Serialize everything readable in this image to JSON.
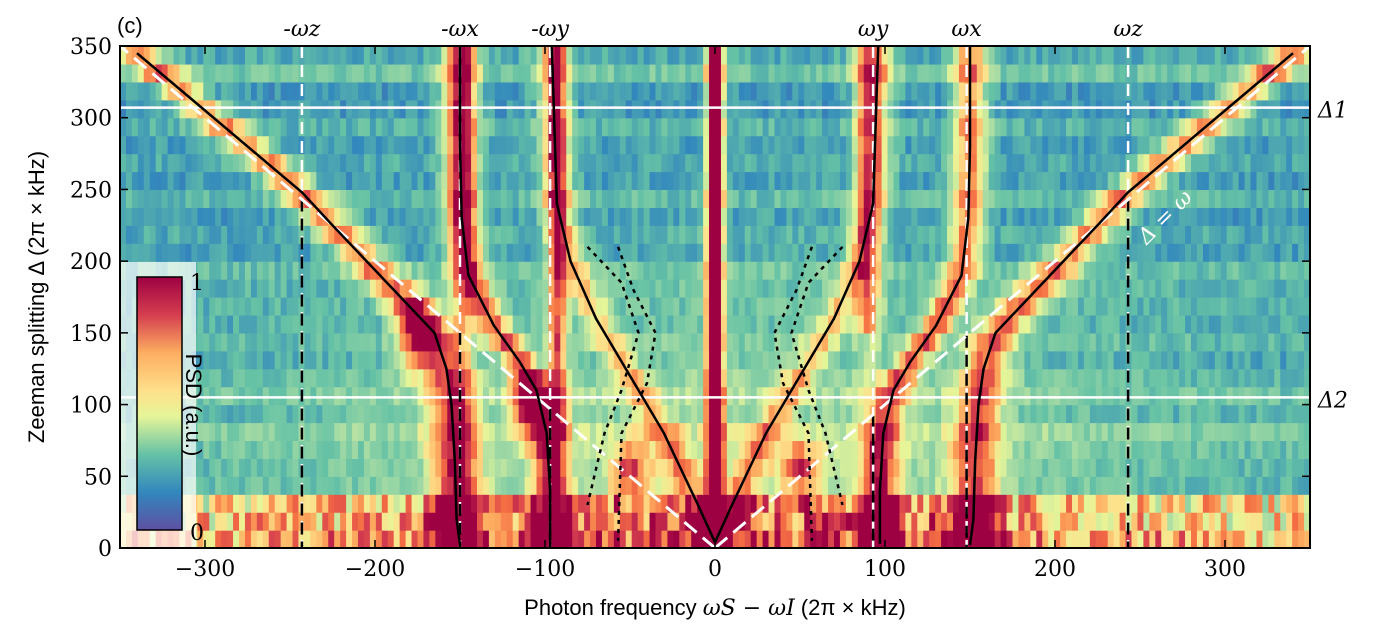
{
  "chart_data": {
    "type": "heatmap",
    "panel_label": "(c)",
    "xlabel_text": "Photon frequency ",
    "xlabel_math": "ωS − ωI",
    "xlabel_unit": "(2π × kHz)",
    "ylabel": "Zeeman splitting Δ (2π × kHz)",
    "xlim": [
      -350,
      350
    ],
    "ylim": [
      0,
      350
    ],
    "xticks": [
      -300,
      -200,
      -100,
      0,
      100,
      200,
      300
    ],
    "xtick_labels": [
      "−300",
      "−200",
      "−100",
      "0",
      "100",
      "200",
      "300"
    ],
    "yticks": [
      0,
      50,
      100,
      150,
      200,
      250,
      300,
      350
    ],
    "ytick_labels": [
      "0",
      "50",
      "100",
      "150",
      "200",
      "250",
      "300",
      "350"
    ],
    "colormap": "Spectral_r",
    "colorbar": {
      "label": "PSD (a.u.)",
      "min_label": "0",
      "max_label": "1",
      "placement": "lower-left"
    },
    "trap_frequencies": [
      {
        "label": "-ωz",
        "value": -243
      },
      {
        "label": "-ωx",
        "value": -150
      },
      {
        "label": "-ωy",
        "value": -97
      },
      {
        "label": "ωy",
        "value": 93
      },
      {
        "label": "ωx",
        "value": 148
      },
      {
        "label": "ωz",
        "value": 243
      }
    ],
    "horizontal_lines": [
      {
        "label": "Δ1",
        "value": 307
      },
      {
        "label": "Δ2",
        "value": 105
      }
    ],
    "diagonal_label": "Δ = ω",
    "diagonal_lines": [
      {
        "from": [
          0,
          0
        ],
        "to": [
          -350,
          350
        ]
      },
      {
        "from": [
          0,
          0
        ],
        "to": [
          350,
          350
        ]
      }
    ],
    "model_curves_solid": [
      {
        "points": [
          [
            -340,
            345
          ],
          [
            -300,
            305
          ],
          [
            -260,
            265
          ],
          [
            -243,
            248
          ],
          [
            -225,
            225
          ],
          [
            -205,
            200
          ],
          [
            -185,
            175
          ],
          [
            -165,
            150
          ],
          [
            -158,
            125
          ],
          [
            -155,
            100
          ],
          [
            -153,
            60
          ],
          [
            -152,
            20
          ],
          [
            -150,
            2
          ]
        ]
      },
      {
        "points": [
          [
            -150,
            350
          ],
          [
            -150,
            280
          ],
          [
            -149,
            230
          ],
          [
            -145,
            190
          ],
          [
            -130,
            155
          ],
          [
            -115,
            130
          ],
          [
            -105,
            110
          ],
          [
            -99,
            80
          ],
          [
            -97,
            40
          ],
          [
            -97,
            3
          ]
        ]
      },
      {
        "points": [
          [
            -96,
            350
          ],
          [
            -93,
            240
          ],
          [
            -85,
            200
          ],
          [
            -70,
            160
          ],
          [
            -50,
            120
          ],
          [
            -30,
            80
          ],
          [
            -10,
            30
          ],
          [
            0,
            4
          ]
        ]
      },
      {
        "points": [
          [
            0,
            4
          ],
          [
            10,
            30
          ],
          [
            30,
            80
          ],
          [
            50,
            120
          ],
          [
            70,
            160
          ],
          [
            85,
            200
          ],
          [
            93,
            240
          ],
          [
            96,
            350
          ]
        ]
      },
      {
        "points": [
          [
            97,
            3
          ],
          [
            97,
            40
          ],
          [
            99,
            80
          ],
          [
            105,
            110
          ],
          [
            115,
            130
          ],
          [
            130,
            155
          ],
          [
            145,
            190
          ],
          [
            149,
            230
          ],
          [
            150,
            280
          ],
          [
            150,
            350
          ]
        ]
      },
      {
        "points": [
          [
            150,
            2
          ],
          [
            152,
            20
          ],
          [
            153,
            60
          ],
          [
            155,
            100
          ],
          [
            158,
            125
          ],
          [
            165,
            150
          ],
          [
            185,
            175
          ],
          [
            205,
            200
          ],
          [
            225,
            225
          ],
          [
            243,
            248
          ],
          [
            260,
            265
          ],
          [
            300,
            305
          ],
          [
            340,
            345
          ]
        ]
      }
    ],
    "model_curves_dotted": [
      {
        "points": [
          [
            -75,
            210
          ],
          [
            -55,
            185
          ],
          [
            -45,
            150
          ],
          [
            -55,
            110
          ],
          [
            -65,
            80
          ],
          [
            -75,
            30
          ]
        ]
      },
      {
        "points": [
          [
            -57,
            210
          ],
          [
            -48,
            180
          ],
          [
            -35,
            150
          ],
          [
            -40,
            115
          ],
          [
            -55,
            80
          ],
          [
            -57,
            5
          ]
        ]
      },
      {
        "points": [
          [
            75,
            210
          ],
          [
            55,
            185
          ],
          [
            45,
            150
          ],
          [
            55,
            110
          ],
          [
            65,
            80
          ],
          [
            75,
            30
          ]
        ]
      },
      {
        "points": [
          [
            57,
            210
          ],
          [
            48,
            180
          ],
          [
            35,
            150
          ],
          [
            40,
            115
          ],
          [
            55,
            80
          ],
          [
            57,
            5
          ]
        ]
      }
    ]
  }
}
